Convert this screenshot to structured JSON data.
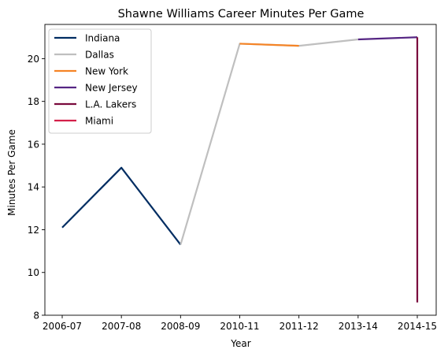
{
  "chart_data": {
    "type": "line",
    "title": "Shawne Williams Career Minutes Per Game",
    "xlabel": "Year",
    "ylabel": "Minutes Per Game",
    "categories": [
      "2006-07",
      "2007-08",
      "2008-09",
      "2010-11",
      "2011-12",
      "2013-14",
      "2014-15"
    ],
    "ylim": [
      8,
      21.6
    ],
    "yticks": [
      8,
      10,
      12,
      14,
      16,
      18,
      20
    ],
    "grid": false,
    "legend_position": "upper-left",
    "series": [
      {
        "name": "Indiana",
        "color": "#002D62",
        "x": [
          "2006-07",
          "2007-08",
          "2008-09"
        ],
        "values": [
          12.1,
          14.9,
          11.3
        ]
      },
      {
        "name": "Dallas",
        "color": "#BFBFBF",
        "x": [
          "2008-09",
          "2010-11",
          "2011-12",
          "2013-14"
        ],
        "values": [
          11.3,
          20.7,
          20.6,
          20.9
        ]
      },
      {
        "name": "New York",
        "color": "#F58426",
        "x": [
          "2010-11",
          "2011-12"
        ],
        "values": [
          20.7,
          20.6
        ]
      },
      {
        "name": "New Jersey",
        "color": "#552583",
        "x": [
          "2013-14",
          "2014-15"
        ],
        "values": [
          20.9,
          21.0
        ]
      },
      {
        "name": "L.A. Lakers",
        "color": "#7A0A3D",
        "x": [
          "2014-15",
          "2014-15"
        ],
        "values": [
          21.0,
          8.6
        ]
      },
      {
        "name": "Miami",
        "color": "#D4204A",
        "x": [],
        "values": []
      }
    ]
  }
}
